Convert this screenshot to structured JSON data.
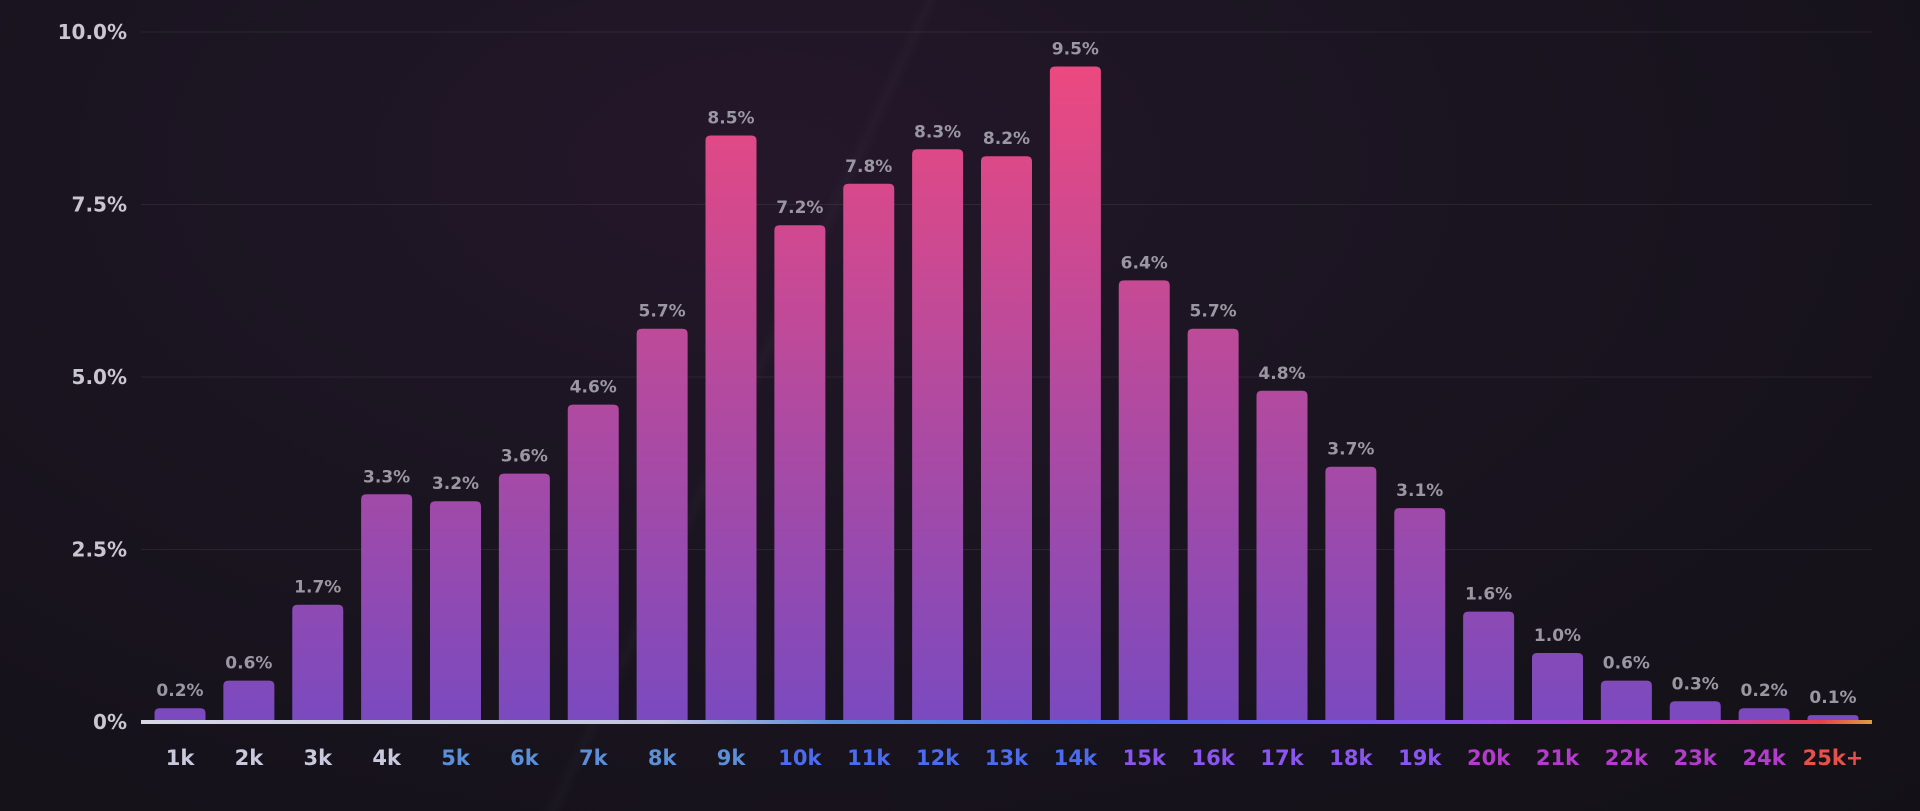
{
  "chart_data": {
    "type": "bar",
    "categories": [
      "1k",
      "2k",
      "3k",
      "4k",
      "5k",
      "6k",
      "7k",
      "8k",
      "9k",
      "10k",
      "11k",
      "12k",
      "13k",
      "14k",
      "15k",
      "16k",
      "17k",
      "18k",
      "19k",
      "20k",
      "21k",
      "22k",
      "23k",
      "24k",
      "25k+"
    ],
    "values": [
      0.2,
      0.6,
      1.7,
      3.3,
      3.2,
      3.6,
      4.6,
      5.7,
      8.5,
      7.2,
      7.8,
      8.3,
      8.2,
      9.5,
      6.4,
      5.7,
      4.8,
      3.7,
      3.1,
      1.6,
      1.0,
      0.6,
      0.3,
      0.2,
      0.1
    ],
    "data_labels": [
      "0.2%",
      "0.6%",
      "1.7%",
      "3.3%",
      "3.2%",
      "3.6%",
      "4.6%",
      "5.7%",
      "8.5%",
      "7.2%",
      "7.8%",
      "8.3%",
      "8.2%",
      "9.5%",
      "6.4%",
      "5.7%",
      "4.8%",
      "3.7%",
      "3.1%",
      "1.6%",
      "1.0%",
      "0.6%",
      "0.3%",
      "0.2%",
      "0.1%"
    ],
    "yticks": [
      0,
      2.5,
      5,
      7.5,
      10
    ],
    "ytick_labels": [
      "0%",
      "2.5%",
      "5.0%",
      "7.5%",
      "10.0%"
    ],
    "ylim": [
      0,
      10
    ],
    "grid": true,
    "colors": {
      "bar_top": "#f2497c",
      "bar_bottom": "#7a4abf",
      "category_label_colors": [
        "#c9c9dd",
        "#c9c9dd",
        "#c9c9dd",
        "#c9c9dd",
        "#5b8fd8",
        "#5b8fd8",
        "#5b8fd8",
        "#5b8fd8",
        "#5b8fd8",
        "#4c6cf0",
        "#4c6cf0",
        "#4c6cf0",
        "#4c6cf0",
        "#4c6cf0",
        "#8b56f0",
        "#8b56f0",
        "#8b56f0",
        "#8b56f0",
        "#8b56f0",
        "#b43ccc",
        "#b43ccc",
        "#b43ccc",
        "#b43ccc",
        "#b43ccc",
        "#e8504a"
      ]
    }
  }
}
